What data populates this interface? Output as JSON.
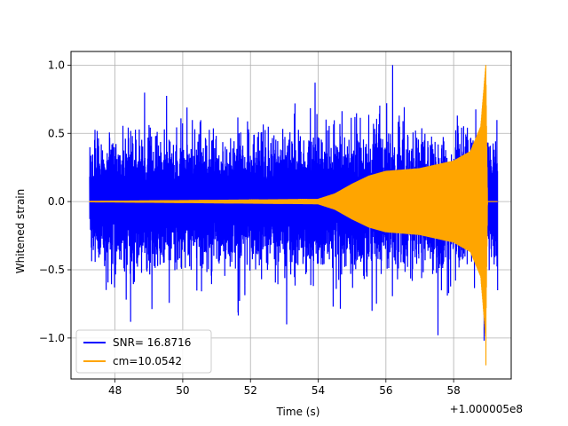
{
  "chart_data": {
    "type": "line",
    "title": "",
    "xlabel": "Time (s)",
    "ylabel": "Whitened strain",
    "x_offset_label": "+1.000005e8",
    "xlim": [
      46.7,
      59.7
    ],
    "ylim": [
      -1.3,
      1.1
    ],
    "xticks": [
      48,
      50,
      52,
      54,
      56,
      58
    ],
    "yticks": [
      -1.0,
      -0.5,
      0.0,
      0.5,
      1.0
    ],
    "xtick_labels": [
      "48",
      "50",
      "52",
      "54",
      "56",
      "58"
    ],
    "ytick_labels": [
      "−1.0",
      "−0.5",
      "0.0",
      "0.5",
      "1.0"
    ],
    "grid": true,
    "legend_position": "lower-left",
    "series": [
      {
        "name": "SNR= 16.8716",
        "color": "#0000ff",
        "kind": "noise",
        "x_range": [
          47.25,
          59.3
        ],
        "typical_amplitude": 0.3,
        "max": 1.0,
        "min": -1.02,
        "x_at_extremes": [
          56.2,
          58.9
        ]
      },
      {
        "name": "cm=10.0542",
        "color": "#ffa500",
        "kind": "chirp",
        "x_range": [
          47.25,
          59.3
        ],
        "envelope": [
          [
            47.25,
            0.005
          ],
          [
            54.0,
            0.02
          ],
          [
            54.5,
            0.06
          ],
          [
            55.0,
            0.13
          ],
          [
            55.5,
            0.19
          ],
          [
            56.0,
            0.225
          ],
          [
            57.0,
            0.245
          ],
          [
            58.0,
            0.3
          ],
          [
            58.5,
            0.37
          ],
          [
            58.8,
            0.55
          ],
          [
            58.95,
            1.0
          ],
          [
            59.0,
            0.0
          ],
          [
            59.3,
            0.0
          ]
        ],
        "max": 1.0,
        "min": -1.2,
        "merger_time": 58.95
      }
    ]
  }
}
